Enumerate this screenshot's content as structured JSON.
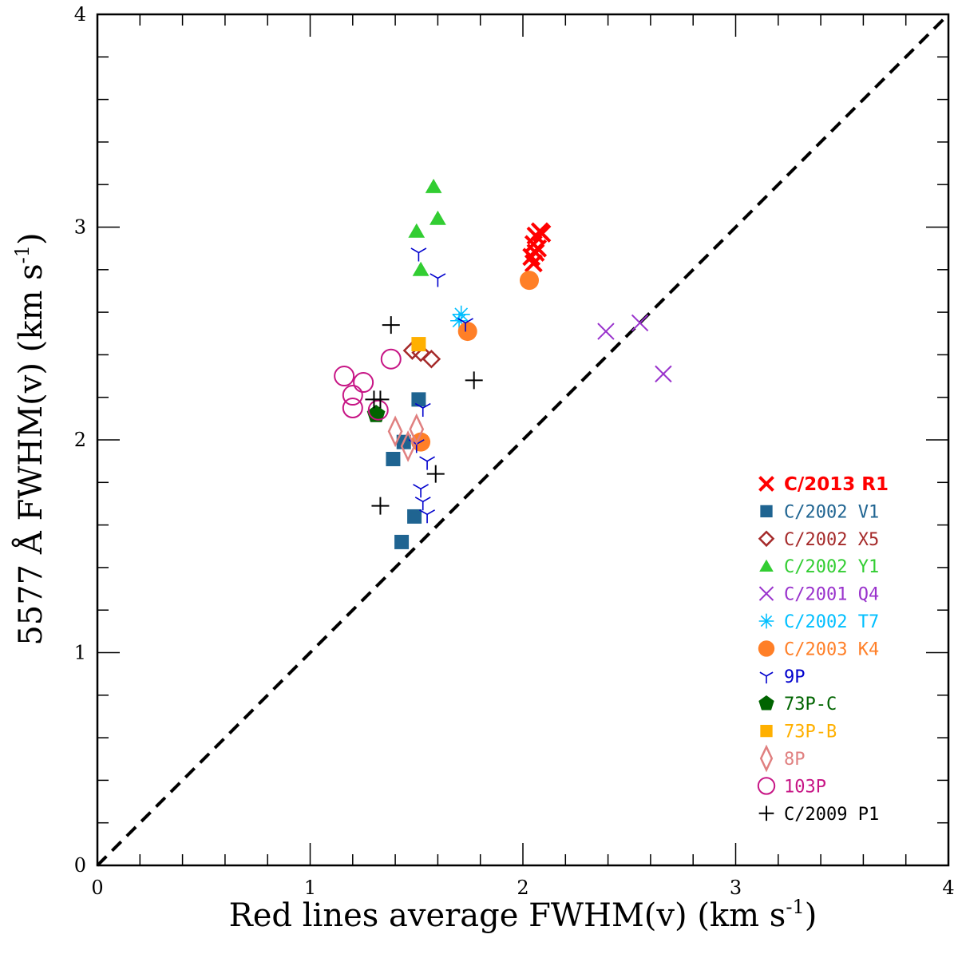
{
  "chart_data": {
    "type": "scatter",
    "xlabel": "Red lines average FWHM(v) (km s",
    "xlabel_sup": "-1",
    "xlabel_tail": ")",
    "ylabel": "5577 Å FWHM(v) (km s",
    "ylabel_sup": "-1",
    "ylabel_tail": ")",
    "xlim": [
      0,
      4
    ],
    "ylim": [
      0,
      4
    ],
    "xticks": [
      "0",
      "1",
      "2",
      "3",
      "4"
    ],
    "yticks": [
      "0",
      "1",
      "2",
      "3",
      "4"
    ],
    "reference_line": {
      "style": "dashed",
      "from": [
        0,
        0
      ],
      "to": [
        4,
        4
      ]
    },
    "legend_position": "bottom-right",
    "series": [
      {
        "name": "C/2013 R1",
        "marker": "xbold",
        "color": "#ff0000",
        "bold": true,
        "points": [
          [
            2.04,
            2.86
          ],
          [
            2.05,
            2.92
          ],
          [
            2.06,
            2.96
          ],
          [
            2.07,
            2.9
          ],
          [
            2.08,
            2.98
          ],
          [
            2.05,
            2.83
          ],
          [
            2.06,
            2.88
          ],
          [
            2.09,
            2.97
          ]
        ]
      },
      {
        "name": "C/2002 V1",
        "marker": "square",
        "color": "#1f6491",
        "points": [
          [
            1.51,
            2.19
          ],
          [
            1.44,
            1.99
          ],
          [
            1.39,
            1.91
          ],
          [
            1.49,
            1.64
          ],
          [
            1.43,
            1.52
          ]
        ]
      },
      {
        "name": "C/2002 X5",
        "marker": "diamond-open",
        "color": "#a52a2a",
        "points": [
          [
            1.48,
            2.42
          ],
          [
            1.52,
            2.41
          ],
          [
            1.57,
            2.38
          ]
        ]
      },
      {
        "name": "C/2002 Y1",
        "marker": "triangle",
        "color": "#32cd32",
        "points": [
          [
            1.58,
            3.19
          ],
          [
            1.6,
            3.04
          ],
          [
            1.5,
            2.98
          ],
          [
            1.52,
            2.8
          ]
        ]
      },
      {
        "name": "C/2001 Q4",
        "marker": "x",
        "color": "#9932cc",
        "points": [
          [
            2.39,
            2.51
          ],
          [
            2.55,
            2.55
          ],
          [
            2.66,
            2.31
          ]
        ]
      },
      {
        "name": "C/2002 T7",
        "marker": "star",
        "color": "#00bfff",
        "points": [
          [
            1.71,
            2.59
          ],
          [
            1.7,
            2.56
          ]
        ]
      },
      {
        "name": "C/2003 K4",
        "marker": "circle",
        "color": "#ff7f27",
        "points": [
          [
            2.03,
            2.75
          ],
          [
            1.74,
            2.51
          ],
          [
            1.52,
            1.99
          ]
        ]
      },
      {
        "name": "9P",
        "marker": "tri",
        "color": "#0000cd",
        "points": [
          [
            1.51,
            2.88
          ],
          [
            1.6,
            2.76
          ],
          [
            1.73,
            2.55
          ],
          [
            1.53,
            2.15
          ],
          [
            1.55,
            1.9
          ],
          [
            1.52,
            1.77
          ],
          [
            1.53,
            1.71
          ],
          [
            1.55,
            1.65
          ],
          [
            1.5,
            1.98
          ]
        ]
      },
      {
        "name": "73P-C",
        "marker": "pentagon",
        "color": "#006400",
        "points": [
          [
            1.31,
            2.12
          ]
        ]
      },
      {
        "name": "73P-B",
        "marker": "square",
        "color": "#ffb000",
        "points": [
          [
            1.51,
            2.45
          ]
        ]
      },
      {
        "name": "8P",
        "marker": "thin-diamond-open",
        "color": "#e08080",
        "points": [
          [
            1.4,
            2.04
          ],
          [
            1.46,
            1.97
          ],
          [
            1.5,
            2.05
          ]
        ]
      },
      {
        "name": "103P",
        "marker": "circle-open",
        "color": "#c71585",
        "points": [
          [
            1.16,
            2.3
          ],
          [
            1.2,
            2.21
          ],
          [
            1.25,
            2.27
          ],
          [
            1.38,
            2.38
          ],
          [
            1.2,
            2.15
          ],
          [
            1.32,
            2.14
          ]
        ]
      },
      {
        "name": "C/2009 P1",
        "marker": "plus",
        "color": "#000000",
        "points": [
          [
            1.38,
            2.54
          ],
          [
            1.3,
            2.19
          ],
          [
            1.33,
            2.19
          ],
          [
            1.77,
            2.28
          ],
          [
            1.59,
            1.84
          ],
          [
            1.33,
            1.69
          ]
        ]
      }
    ]
  }
}
